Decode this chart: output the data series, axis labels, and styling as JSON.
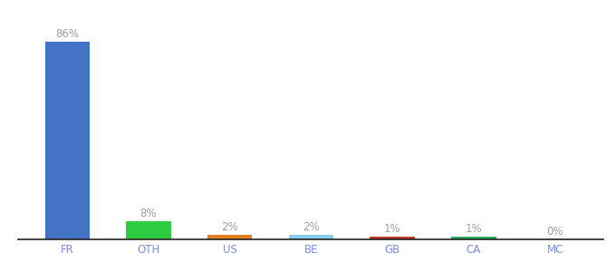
{
  "categories": [
    "FR",
    "OTH",
    "US",
    "BE",
    "GB",
    "CA",
    "MC"
  ],
  "values": [
    86,
    8,
    2,
    2,
    1,
    1,
    0
  ],
  "bar_colors": [
    "#4472C4",
    "#2ECC40",
    "#E67E22",
    "#87CEEB",
    "#C0392B",
    "#27AE60",
    "#AAAAAA"
  ],
  "label_color": "#9E9E9E",
  "tick_color": "#7B8CDE",
  "background_color": "#FFFFFF",
  "ylim": [
    0,
    96
  ],
  "bar_width": 0.55,
  "label_fontsize": 8.5,
  "tick_fontsize": 8.5
}
